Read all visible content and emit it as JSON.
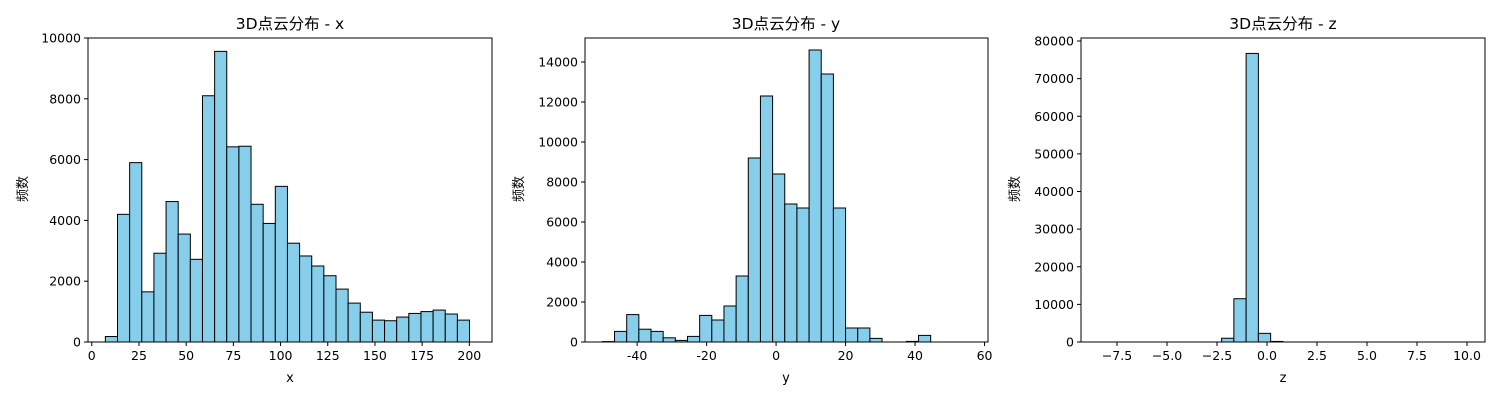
{
  "bar_color": "#87ceeb",
  "edge_color": "#000000",
  "chart_data": [
    {
      "type": "bar",
      "title": "3D点云分布 - x",
      "xlabel": "x",
      "ylabel": "频数",
      "xlim": [
        -2,
        212
      ],
      "ylim": [
        0,
        10000
      ],
      "xticks": [
        0,
        25,
        50,
        75,
        100,
        125,
        150,
        175,
        200
      ],
      "yticks": [
        0,
        2000,
        4000,
        6000,
        8000,
        10000
      ],
      "bin_start": 7.2,
      "bin_width": 6.43,
      "values": [
        180,
        4200,
        5900,
        1650,
        2920,
        4620,
        3550,
        2720,
        8100,
        9560,
        6420,
        6440,
        4530,
        3900,
        5120,
        3250,
        2830,
        2500,
        2180,
        1740,
        1280,
        980,
        720,
        700,
        820,
        940,
        1000,
        1050,
        920,
        720
      ]
    },
    {
      "type": "bar",
      "title": "3D点云分布 - y",
      "xlabel": "y",
      "ylabel": "频数",
      "xlim": [
        -55,
        61
      ],
      "ylim": [
        0,
        15200
      ],
      "xticks": [
        -40,
        -20,
        0,
        20,
        40,
        60
      ],
      "yticks": [
        0,
        2000,
        4000,
        6000,
        8000,
        10000,
        12000,
        14000
      ],
      "bin_start": -50,
      "bin_width": 3.5,
      "values": [
        20,
        530,
        1370,
        640,
        530,
        210,
        80,
        280,
        1330,
        1100,
        1800,
        3300,
        9200,
        12300,
        8400,
        6900,
        6700,
        14600,
        13400,
        6700,
        700,
        700,
        180,
        0,
        0,
        30,
        330,
        0,
        0,
        0
      ]
    },
    {
      "type": "bar",
      "title": "3D点云分布 - z",
      "xlabel": "z",
      "ylabel": "频数",
      "xlim": [
        -9.3,
        10.9
      ],
      "ylim": [
        0,
        80800
      ],
      "xticks": [
        -7.5,
        -5.0,
        -2.5,
        0.0,
        2.5,
        5.0,
        7.5,
        10.0
      ],
      "xtick_labels": [
        "−7.5",
        "−5.0",
        "−2.5",
        "0.0",
        "2.5",
        "5.0",
        "7.5",
        "10.0"
      ],
      "yticks": [
        0,
        10000,
        20000,
        30000,
        40000,
        50000,
        60000,
        70000,
        80000
      ],
      "bin_start": -8.4,
      "bin_width": 0.613,
      "values": [
        0,
        0,
        0,
        0,
        0,
        0,
        0,
        0,
        0,
        0,
        1000,
        11500,
        76700,
        2300,
        150,
        0,
        0,
        0,
        0,
        0,
        0,
        0,
        0,
        0,
        0,
        0,
        0,
        0,
        0,
        0
      ]
    }
  ]
}
